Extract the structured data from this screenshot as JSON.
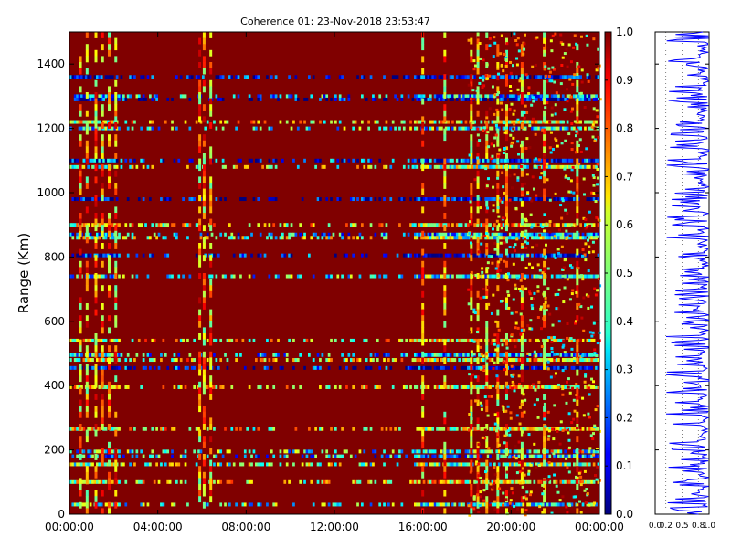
{
  "chart_data": [
    {
      "type": "heatmap",
      "title": "Coherence 01: 23-Nov-2018 23:53:47",
      "ylabel": "Range (Km)",
      "xlabel": "",
      "x_ticks": [
        "00:00:00",
        "04:00:00",
        "08:00:00",
        "12:00:00",
        "16:00:00",
        "20:00:00",
        "00:00:00"
      ],
      "y_ticks": [
        "0",
        "200",
        "400",
        "600",
        "800",
        "1000",
        "1200",
        "1400"
      ],
      "xlim_hours": [
        0,
        24
      ],
      "ylim": [
        0,
        1500
      ],
      "colorbar": {
        "colormap": "jet",
        "range": [
          0.0,
          1.0
        ],
        "ticks": [
          "0.0",
          "0.1",
          "0.2",
          "0.3",
          "0.4",
          "0.5",
          "0.6",
          "0.7",
          "0.8",
          "0.9",
          "1.0"
        ]
      },
      "background_value": 1.0,
      "low_coherence_range_bands_km": [
        {
          "range": 1360,
          "level": 0.1
        },
        {
          "range": 1300,
          "level": 0.3
        },
        {
          "range": 1290,
          "level": 0.1
        },
        {
          "range": 1220,
          "level": 0.6
        },
        {
          "range": 1200,
          "level": 0.4
        },
        {
          "range": 1100,
          "level": 0.2
        },
        {
          "range": 1080,
          "level": 0.5
        },
        {
          "range": 980,
          "level": 0.05
        },
        {
          "range": 900,
          "level": 0.6
        },
        {
          "range": 870,
          "level": 0.3
        },
        {
          "range": 860,
          "level": 0.5
        },
        {
          "range": 805,
          "level": 0.1
        },
        {
          "range": 740,
          "level": 0.4
        },
        {
          "range": 540,
          "level": 0.6
        },
        {
          "range": 495,
          "level": 0.3
        },
        {
          "range": 480,
          "level": 0.6
        },
        {
          "range": 455,
          "level": 0.1
        },
        {
          "range": 395,
          "level": 0.6
        },
        {
          "range": 265,
          "level": 0.6
        },
        {
          "range": 195,
          "level": 0.4
        },
        {
          "range": 180,
          "level": 0.3
        },
        {
          "range": 155,
          "level": 0.5
        },
        {
          "range": 100,
          "level": 0.6
        },
        {
          "range": 30,
          "level": 0.4
        }
      ],
      "low_coherence_time_columns_hours": [
        0.5,
        0.8,
        1.2,
        1.5,
        1.8,
        2.1,
        5.9,
        6.1,
        6.4,
        16.0,
        17.0,
        18.2,
        18.5,
        18.9,
        19.4,
        19.8,
        20.5,
        21.5,
        23.0
      ]
    },
    {
      "type": "line",
      "orientation": "vertical",
      "xlim": [
        0.0,
        1.0
      ],
      "ylim": [
        0,
        1500
      ],
      "x_ticks": [
        "0.0",
        "0.2",
        "0.5",
        "0.8",
        "1.0"
      ],
      "series": [
        {
          "color": "#0000ff"
        }
      ]
    }
  ]
}
